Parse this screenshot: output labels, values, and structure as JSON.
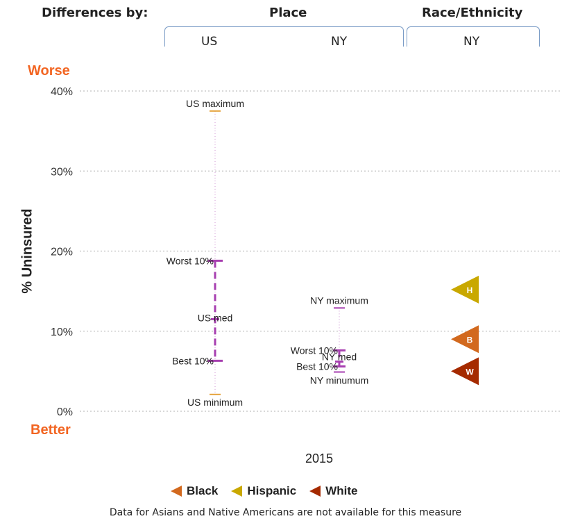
{
  "header": {
    "differences_by": "Differences by:",
    "place": "Place",
    "race_ethnicity": "Race/Ethnicity",
    "col_us": "US",
    "col_ny_place": "NY",
    "col_ny_race": "NY"
  },
  "labels": {
    "worse": "Worse",
    "better": "Better"
  },
  "chart_data": {
    "type": "scatter",
    "ylabel": "% Uninsured",
    "ylim": [
      0,
      40
    ],
    "yticks": [
      "0%",
      "10%",
      "20%",
      "30%",
      "40%"
    ],
    "ytick_values": [
      0,
      10,
      20,
      30,
      40
    ],
    "grid": true,
    "xlabel": "2015",
    "distributions": [
      {
        "name": "US",
        "maximum": 37.5,
        "maximum_label": "US maximum",
        "worst10": 18.8,
        "worst10_label": "Worst 10%",
        "median": 11.5,
        "median_label": "US med",
        "best10": 6.3,
        "best10_label": "Best 10%",
        "minimum": 2.1,
        "minimum_label": "US minimum"
      },
      {
        "name": "NY",
        "maximum": 12.9,
        "maximum_label": "NY maximum",
        "worst10": 7.6,
        "worst10_label": "Worst 10%",
        "median": 6.2,
        "median_label": "NY med",
        "best10": 5.6,
        "best10_label": "Best 10%",
        "minimum": 4.9,
        "minimum_label": "NY minumum"
      }
    ],
    "race_groups": [
      {
        "name": "Hispanic",
        "letter": "H",
        "value": 15.2,
        "color": "#c9a800"
      },
      {
        "name": "Black",
        "letter": "B",
        "value": 9.0,
        "color": "#d2691e"
      },
      {
        "name": "White",
        "letter": "W",
        "value": 5.0,
        "color": "#a52a00"
      }
    ],
    "colors": {
      "range": "#a73fb0",
      "extreme": "#e5a23a",
      "grid": "#cccccc"
    }
  },
  "legend": [
    {
      "name": "Black",
      "color": "#d2691e"
    },
    {
      "name": "Hispanic",
      "color": "#c9a800"
    },
    {
      "name": "White",
      "color": "#a52a00"
    }
  ],
  "footnote": "Data for Asians and Native Americans are not available for this measure"
}
